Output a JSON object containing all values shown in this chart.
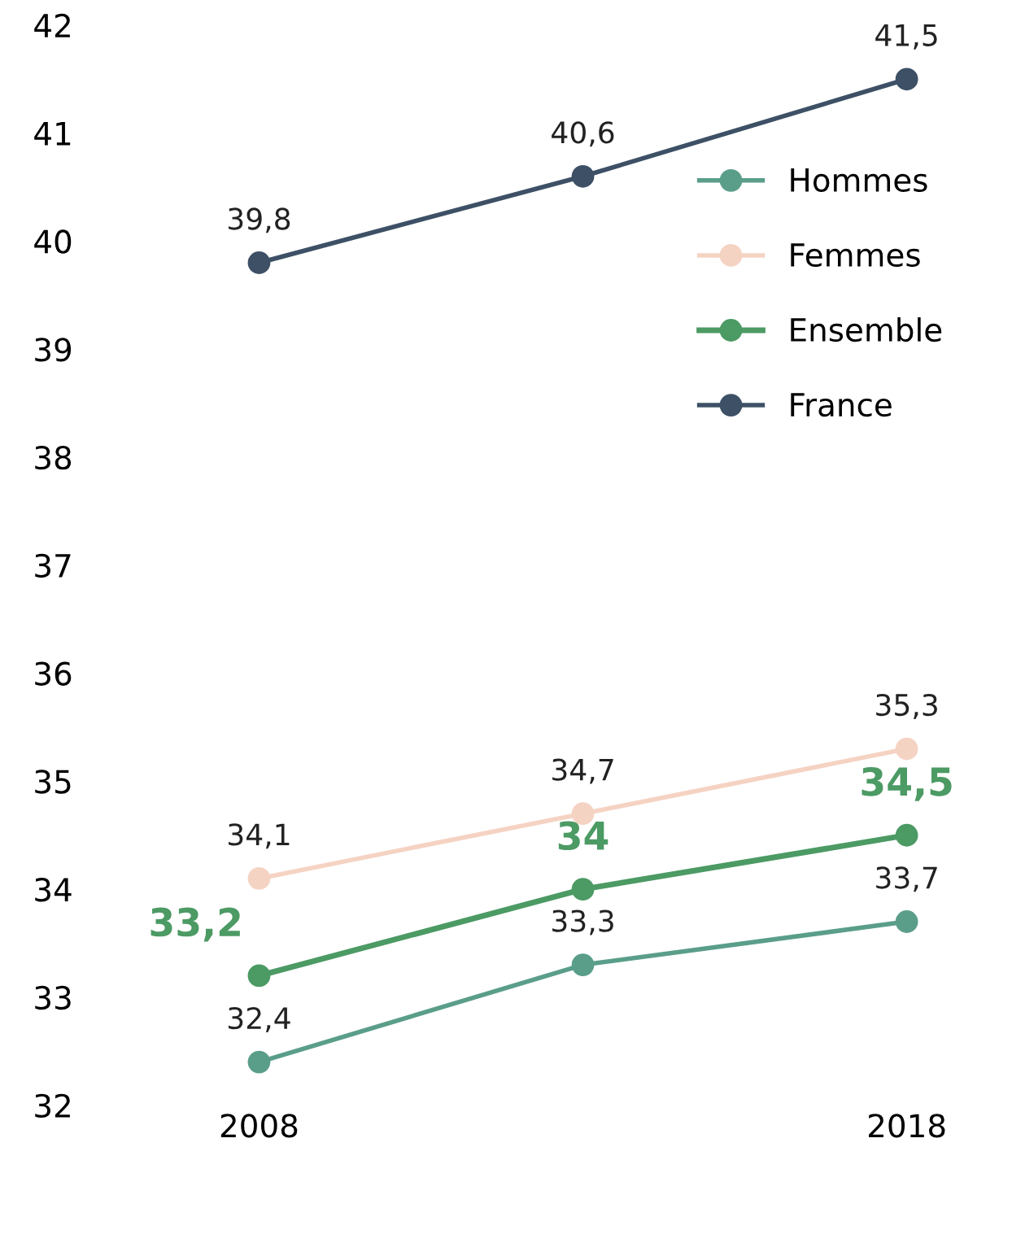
{
  "chart_data": {
    "type": "line",
    "categories": [
      "2008",
      null,
      "2018"
    ],
    "ylim": [
      32,
      42
    ],
    "yticks": [
      32,
      33,
      34,
      35,
      36,
      37,
      38,
      39,
      40,
      41,
      42
    ],
    "legend": "right",
    "marker": "circle",
    "series": [
      {
        "name": "Hommes",
        "color": "#5a9e8a",
        "values": [
          32.4,
          33.3,
          33.7
        ],
        "value_labels": [
          "32,4",
          "33,3",
          "33,7"
        ]
      },
      {
        "name": "Femmes",
        "color": "#f5d3c3",
        "values": [
          34.1,
          34.7,
          35.3
        ],
        "value_labels": [
          "34,1",
          "34,7",
          "35,3"
        ]
      },
      {
        "name": "Ensemble",
        "color": "#4c9a64",
        "values": [
          33.2,
          34.0,
          34.5
        ],
        "value_labels": [
          "33,2",
          "34",
          "34,5"
        ]
      },
      {
        "name": "France",
        "color": "#3d5066",
        "values": [
          39.8,
          40.6,
          41.5
        ],
        "value_labels": [
          "39,8",
          "40,6",
          "41,5"
        ]
      }
    ]
  }
}
